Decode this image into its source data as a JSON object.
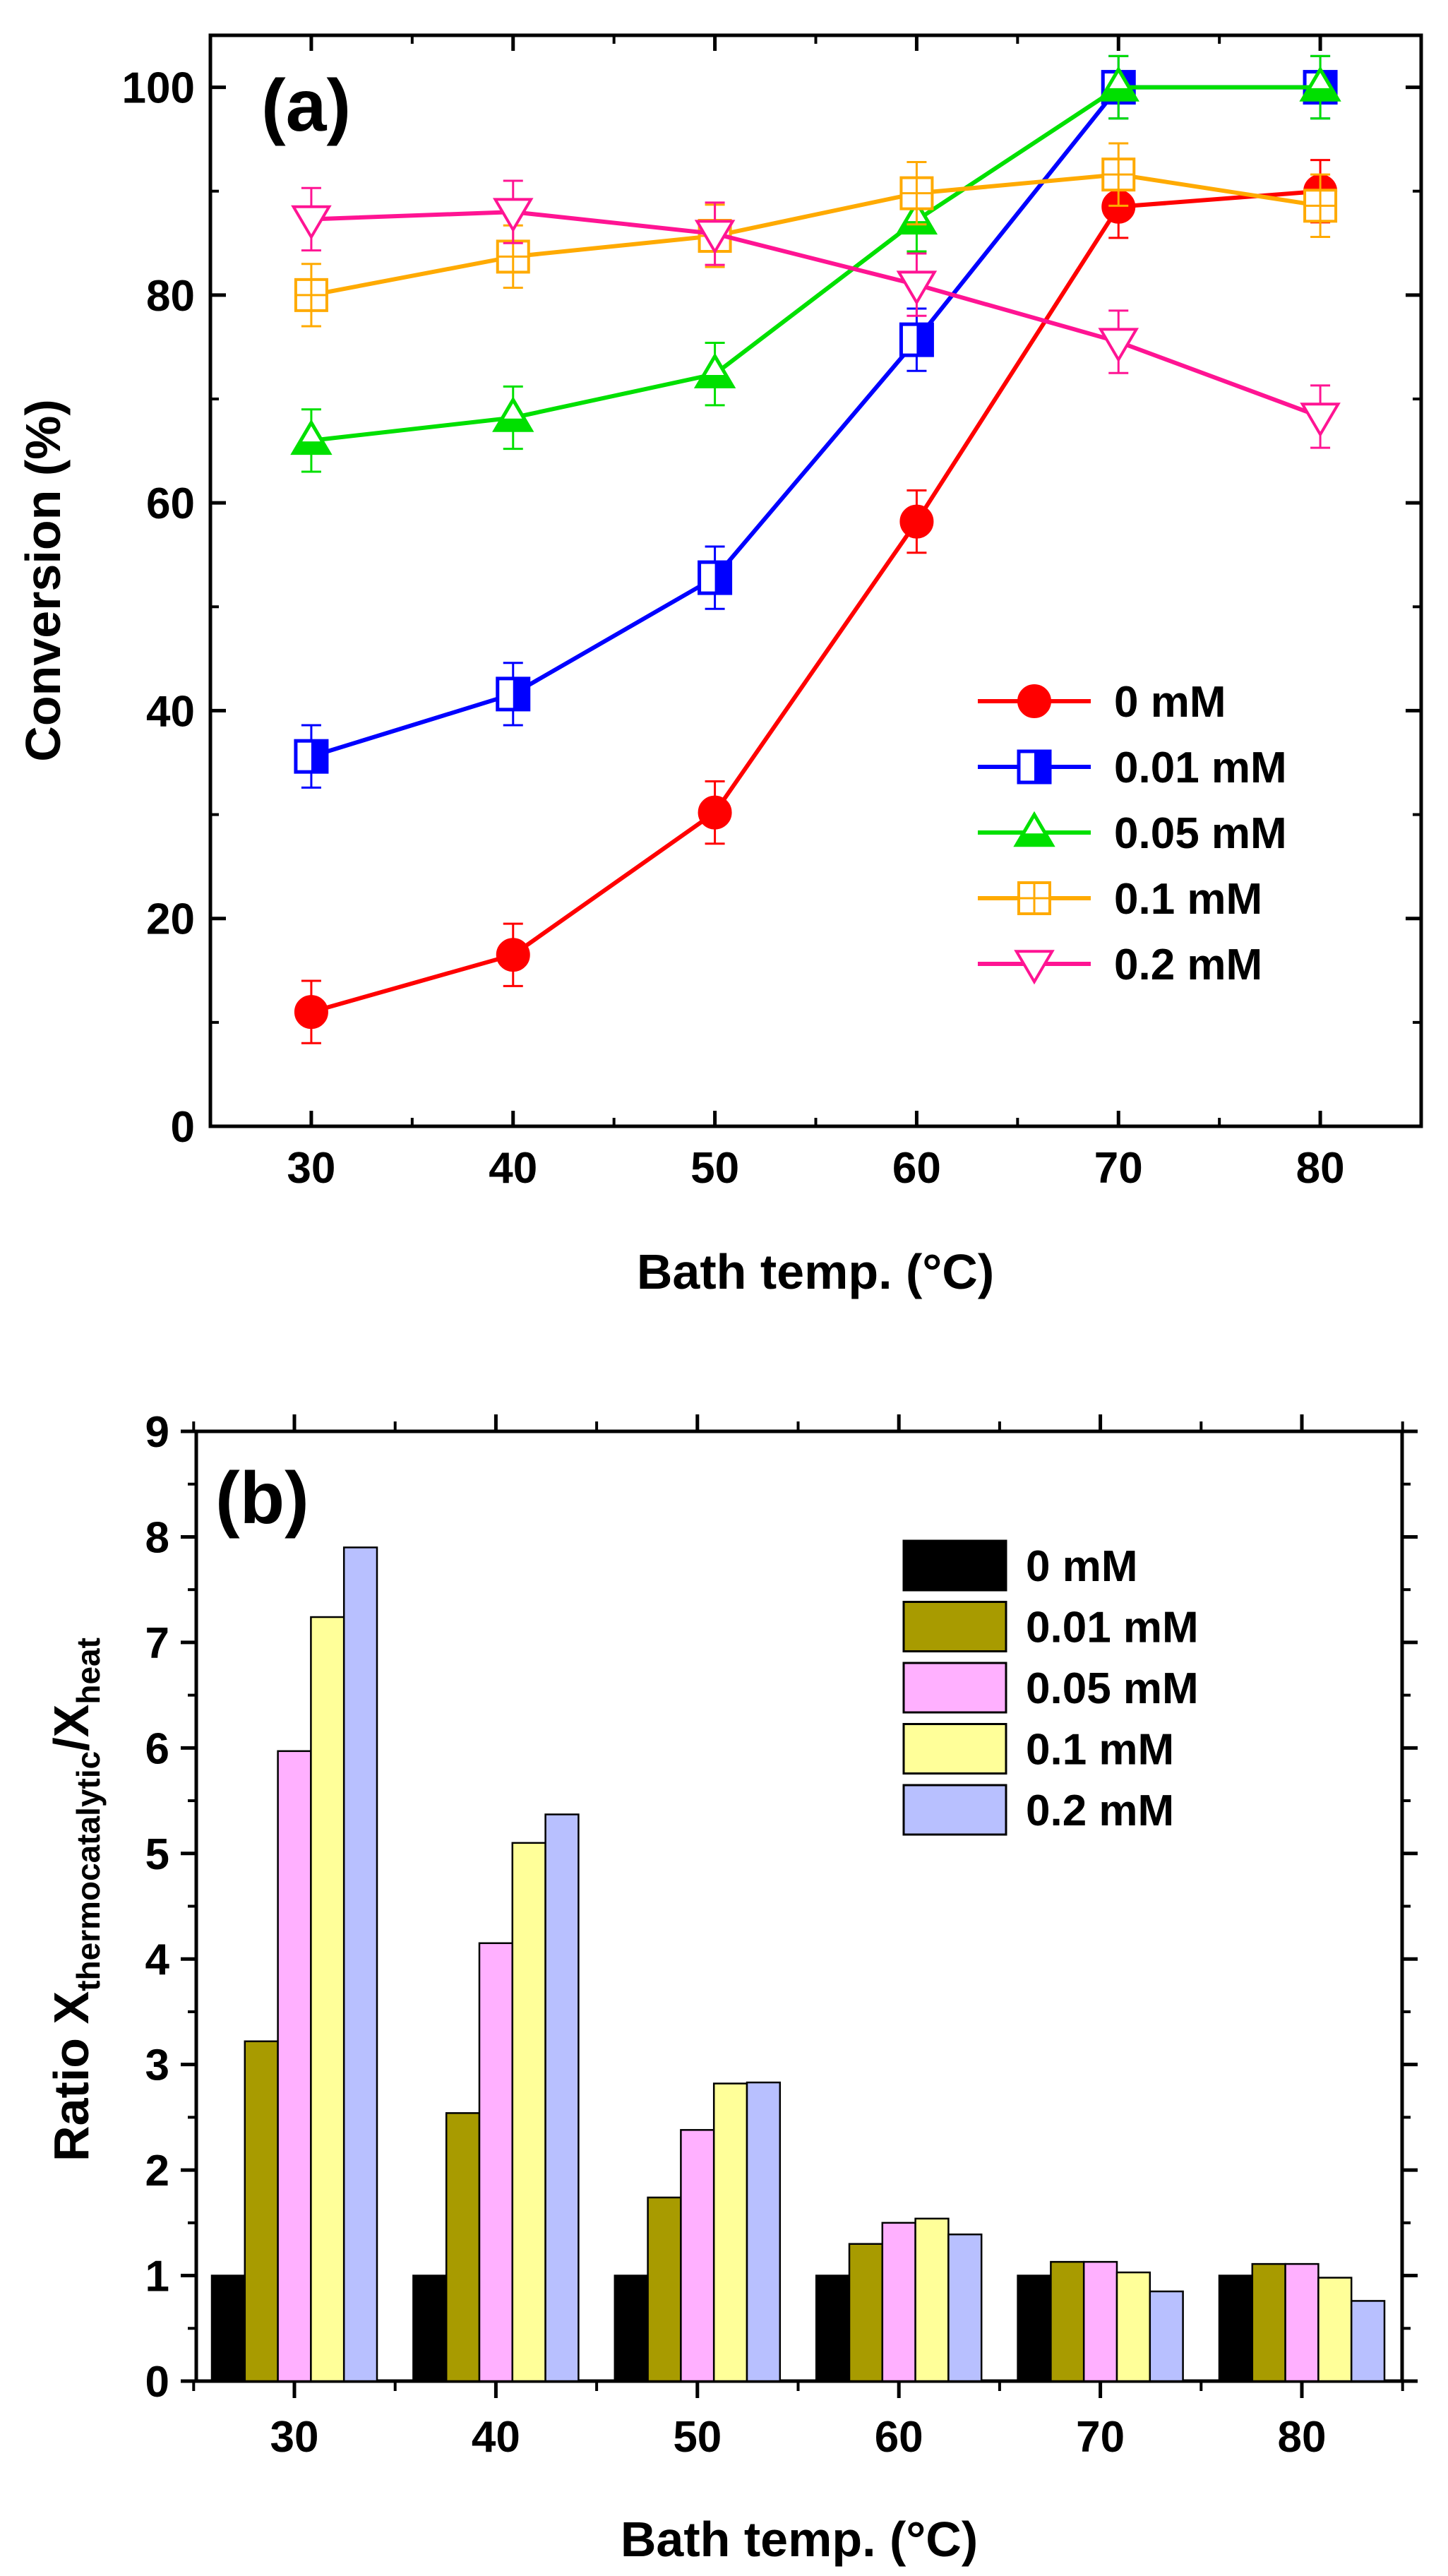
{
  "chart_data": [
    {
      "type": "line",
      "panel_label": "(a)",
      "xlabel": "Bath temp. (°C)",
      "ylabel": "Conversion (%)",
      "x": [
        30,
        40,
        50,
        60,
        70,
        80
      ],
      "xlim": [
        25,
        85
      ],
      "ylim": [
        0,
        105
      ],
      "xticks": [
        30,
        40,
        50,
        60,
        70,
        80
      ],
      "yticks": [
        0,
        20,
        40,
        60,
        80,
        100
      ],
      "legend_position": "right-middle",
      "series": [
        {
          "name": "0 mM",
          "color": "#ff0000",
          "marker": "circle-filled",
          "values": [
            11,
            16.5,
            30.2,
            58.2,
            88.5,
            90
          ],
          "errors": [
            3,
            3,
            3,
            3,
            3,
            3
          ]
        },
        {
          "name": "0.01 mM",
          "color": "#0000ff",
          "marker": "square-half",
          "values": [
            35.6,
            41.6,
            52.8,
            75.7,
            100,
            100
          ],
          "errors": [
            3,
            3,
            3,
            3,
            3,
            3
          ]
        },
        {
          "name": "0.05 mM",
          "color": "#00e000",
          "marker": "triangle-up",
          "values": [
            66,
            68.2,
            72.4,
            87.2,
            100,
            100
          ],
          "errors": [
            3,
            3,
            3,
            3,
            3,
            3
          ]
        },
        {
          "name": "0.1 mM",
          "color": "#ffaa00",
          "marker": "square-plus",
          "values": [
            80,
            83.7,
            85.7,
            89.8,
            91.6,
            88.6
          ],
          "errors": [
            3,
            3,
            3,
            3,
            3,
            3
          ]
        },
        {
          "name": "0.2 mM",
          "color": "#ff1493",
          "marker": "triangle-down",
          "values": [
            87.3,
            88,
            85.9,
            81,
            75.5,
            68.3
          ],
          "errors": [
            3,
            3,
            3,
            3,
            3,
            3
          ]
        }
      ]
    },
    {
      "type": "bar",
      "panel_label": "(b)",
      "xlabel": "Bath temp. (°C)",
      "ylabel_main": "Ratio X",
      "ylabel_sub1": "thermocatalytic",
      "ylabel_mid": "/X",
      "ylabel_sub2": "heat",
      "categories": [
        "30",
        "40",
        "50",
        "60",
        "70",
        "80"
      ],
      "ylim": [
        0,
        9
      ],
      "yticks": [
        0,
        1,
        2,
        3,
        4,
        5,
        6,
        7,
        8,
        9
      ],
      "legend_position": "top-right",
      "series": [
        {
          "name": "0 mM",
          "color": "#000000",
          "values": [
            1,
            1,
            1,
            1,
            1,
            1
          ]
        },
        {
          "name": "0.01 mM",
          "color": "#a89b00",
          "values": [
            3.22,
            2.54,
            1.74,
            1.3,
            1.13,
            1.11
          ]
        },
        {
          "name": "0.05 mM",
          "color": "#ffb0ff",
          "values": [
            5.97,
            4.15,
            2.38,
            1.5,
            1.13,
            1.11
          ]
        },
        {
          "name": "0.1 mM",
          "color": "#ffff99",
          "values": [
            7.24,
            5.1,
            2.82,
            1.54,
            1.03,
            0.98
          ]
        },
        {
          "name": "0.2 mM",
          "color": "#b8c0ff",
          "values": [
            7.9,
            5.37,
            2.83,
            1.39,
            0.85,
            0.76
          ]
        }
      ]
    }
  ]
}
